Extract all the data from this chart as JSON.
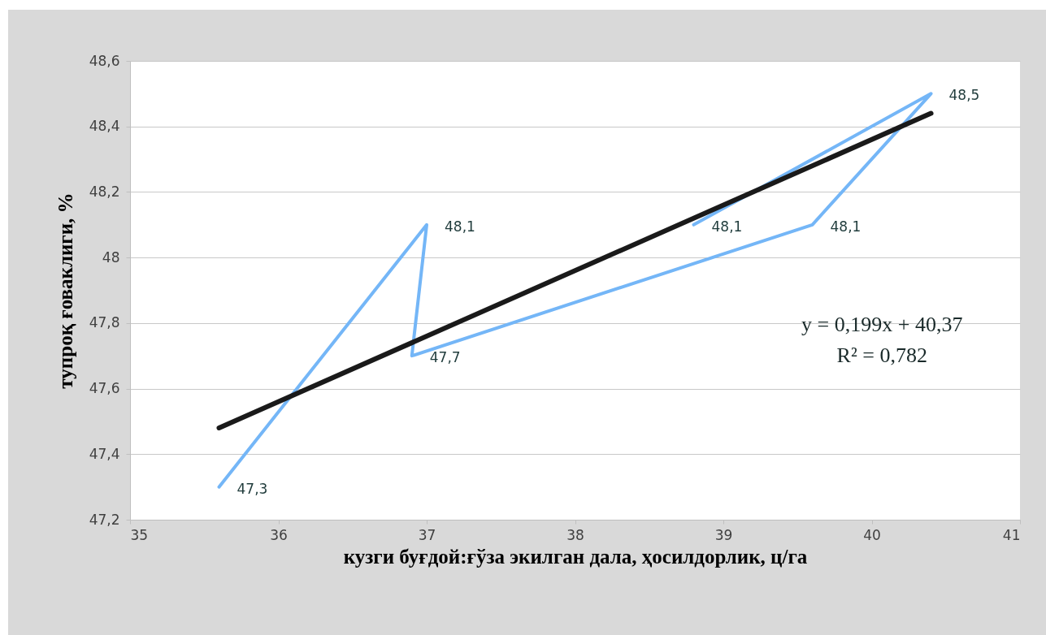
{
  "chart_data": {
    "type": "line",
    "xlabel": "кузги буғдой:ғўза экилган дала, ҳосилдорлик, ц/га",
    "ylabel": "тупроқ ғоваклиги, %",
    "xlim": [
      35,
      41
    ],
    "xticks": [
      35,
      36,
      37,
      38,
      39,
      40,
      41
    ],
    "ylim": [
      47.2,
      48.6
    ],
    "yticks": [
      {
        "value": 47.2,
        "label": "47,2"
      },
      {
        "value": 47.4,
        "label": "47,4"
      },
      {
        "value": 47.6,
        "label": "47,6"
      },
      {
        "value": 47.8,
        "label": "47,8"
      },
      {
        "value": 48,
        "label": "48"
      },
      {
        "value": 48.2,
        "label": "48,2"
      },
      {
        "value": 48.4,
        "label": "48,4"
      },
      {
        "value": 48.6,
        "label": "48,6"
      }
    ],
    "grid": "y",
    "marker": "none",
    "line_style": "solid",
    "series": [
      {
        "color": "#74b6f7",
        "x": [
          35.6,
          37.0,
          36.9,
          39.6,
          40.4,
          38.8
        ],
        "values": [
          47.3,
          48.1,
          47.7,
          48.1,
          48.5,
          48.1
        ],
        "value_labels": [
          "47,3",
          "48,1",
          "47,7",
          "48,1",
          "48,5",
          "48,1"
        ]
      },
      {
        "type": "line",
        "color": "#1a1a1a",
        "x": [
          35.6,
          40.4
        ],
        "values": [
          47.48,
          48.44
        ]
      }
    ],
    "annotations": [
      "y = 0,199x + 40,37",
      "R² = 0,782"
    ]
  }
}
